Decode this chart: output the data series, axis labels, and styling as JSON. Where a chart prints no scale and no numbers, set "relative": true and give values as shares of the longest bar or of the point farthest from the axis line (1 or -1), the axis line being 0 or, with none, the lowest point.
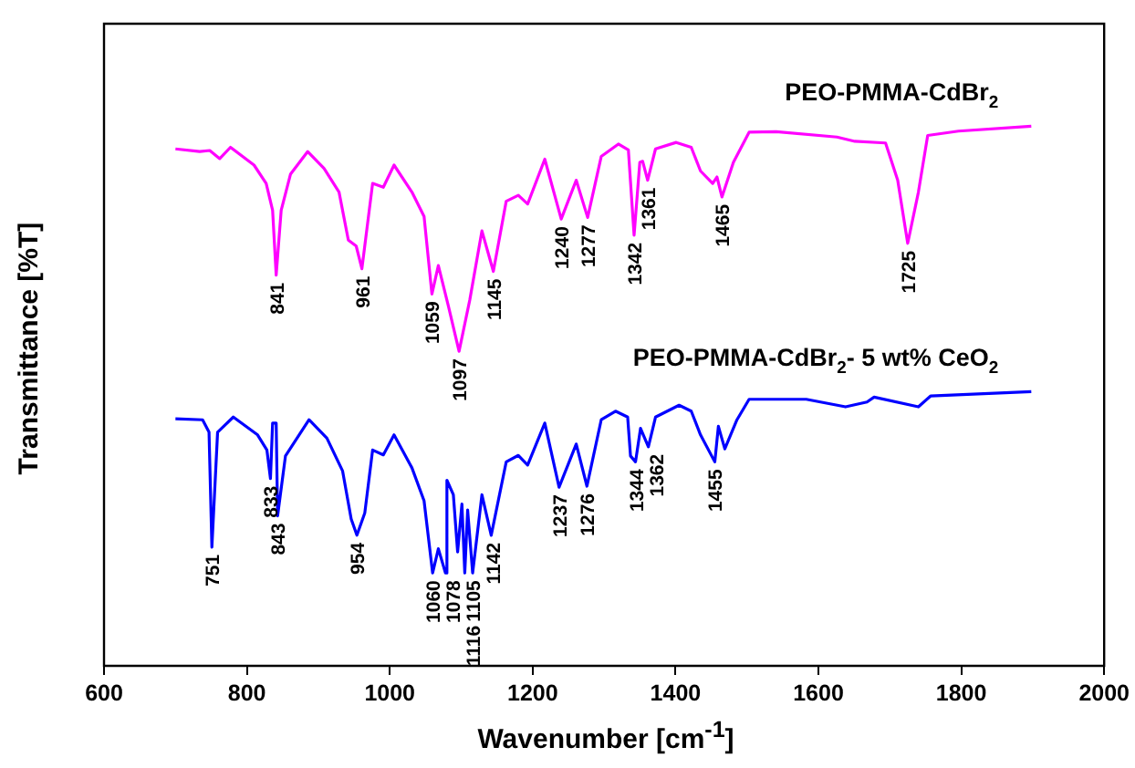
{
  "chart_data": {
    "type": "line",
    "relative": true,
    "marker": "none",
    "xlabel": "Wavenumber [cm$^{-1}$]",
    "ylabel": "Transmittance [%T]",
    "xlim": [
      600,
      2000
    ],
    "xticks": [
      600,
      800,
      1000,
      1200,
      1400,
      1600,
      1800,
      2000
    ],
    "series": [
      {
        "name": "PEO-PMMA-CdBr$_{2}$",
        "color": "#ff00ff",
        "x": [
          700,
          734,
          748,
          762,
          777,
          810,
          827,
          836,
          841,
          848,
          861,
          885,
          908,
          929,
          942,
          953,
          961,
          976,
          991,
          1006,
          1031,
          1048,
          1059,
          1068,
          1082,
          1097,
          1112,
          1129,
          1145,
          1163,
          1180,
          1193,
          1217,
          1240,
          1261,
          1277,
          1296,
          1320,
          1334,
          1342,
          1350,
          1354,
          1361,
          1372,
          1401,
          1422,
          1435,
          1452,
          1458,
          1465,
          1481,
          1503,
          1541,
          1626,
          1651,
          1694,
          1711,
          1725,
          1740,
          1753,
          1796,
          1898
        ],
        "values": [
          0.958,
          0.953,
          0.955,
          0.94,
          0.961,
          0.928,
          0.894,
          0.844,
          0.724,
          0.844,
          0.911,
          0.953,
          0.922,
          0.878,
          0.789,
          0.778,
          0.736,
          0.894,
          0.887,
          0.928,
          0.878,
          0.833,
          0.689,
          0.742,
          0.667,
          0.583,
          0.678,
          0.806,
          0.731,
          0.861,
          0.872,
          0.856,
          0.939,
          0.828,
          0.9,
          0.831,
          0.944,
          0.967,
          0.956,
          0.798,
          0.933,
          0.935,
          0.9,
          0.958,
          0.97,
          0.961,
          0.917,
          0.894,
          0.906,
          0.869,
          0.933,
          0.989,
          0.99,
          0.98,
          0.972,
          0.969,
          0.9,
          0.783,
          0.878,
          0.983,
          0.991,
          1
        ]
      },
      {
        "name": "PEO-PMMA-CdBr$_{2}$- 5 wt% CeO$_{2}$",
        "color": "#0000ff",
        "x": [
          700,
          738,
          747,
          751,
          759,
          781,
          815,
          828,
          833,
          836,
          841,
          843,
          854,
          887,
          912,
          934,
          946,
          954,
          965,
          976,
          991,
          1006,
          1031,
          1048,
          1060,
          1068,
          1078,
          1080,
          1089,
          1095,
          1101,
          1105,
          1109,
          1116,
          1129,
          1142,
          1163,
          1180,
          1193,
          1217,
          1237,
          1261,
          1276,
          1296,
          1316,
          1333,
          1337,
          1344,
          1351,
          1362,
          1372,
          1405,
          1422,
          1435,
          1455,
          1460,
          1469,
          1486,
          1503,
          1583,
          1638,
          1668,
          1678,
          1740,
          1757,
          1898
        ],
        "values": [
          0.458,
          0.456,
          0.433,
          0.22,
          0.433,
          0.461,
          0.428,
          0.4,
          0.347,
          0.45,
          0.45,
          0.278,
          0.389,
          0.456,
          0.422,
          0.361,
          0.272,
          0.242,
          0.283,
          0.4,
          0.391,
          0.428,
          0.367,
          0.306,
          0.172,
          0.217,
          0.172,
          0.344,
          0.317,
          0.211,
          0.3,
          0.172,
          0.289,
          0.172,
          0.317,
          0.242,
          0.378,
          0.39,
          0.372,
          0.45,
          0.331,
          0.411,
          0.333,
          0.456,
          0.472,
          0.461,
          0.389,
          0.378,
          0.44,
          0.406,
          0.461,
          0.483,
          0.472,
          0.428,
          0.378,
          0.444,
          0.402,
          0.456,
          0.494,
          0.494,
          0.48,
          0.489,
          0.498,
          0.48,
          0.5,
          0.508
        ]
      }
    ],
    "annotations": [
      {
        "text": "841",
        "x": 841,
        "y": 0.724
      },
      {
        "text": "961",
        "x": 961,
        "y": 0.736
      },
      {
        "text": "1059",
        "x": 1059,
        "y": 0.689
      },
      {
        "text": "1097",
        "x": 1097,
        "y": 0.583
      },
      {
        "text": "1145",
        "x": 1145,
        "y": 0.731
      },
      {
        "text": "1240",
        "x": 1240,
        "y": 0.828
      },
      {
        "text": "1277",
        "x": 1277,
        "y": 0.831
      },
      {
        "text": "1342",
        "x": 1342,
        "y": 0.798
      },
      {
        "text": "1361",
        "x": 1361,
        "y": 0.9
      },
      {
        "text": "1465",
        "x": 1465,
        "y": 0.869
      },
      {
        "text": "1725",
        "x": 1725,
        "y": 0.783
      },
      {
        "text": "751",
        "x": 751,
        "y": 0.22
      },
      {
        "text": "833",
        "x": 833,
        "y": 0.347
      },
      {
        "text": "843",
        "x": 843,
        "y": 0.278
      },
      {
        "text": "954",
        "x": 954,
        "y": 0.242
      },
      {
        "text": "1060",
        "x": 1060,
        "y": 0.172
      },
      {
        "text": "1078",
        "x": 1078,
        "y": 0.172
      },
      {
        "text": "1105",
        "x": 1105,
        "y": 0.172
      },
      {
        "text": "1116",
        "x": 1116,
        "y": 0.172
      },
      {
        "text": "1142",
        "x": 1142,
        "y": 0.242
      },
      {
        "text": "1237",
        "x": 1237,
        "y": 0.331
      },
      {
        "text": "1276",
        "x": 1276,
        "y": 0.333
      },
      {
        "text": "1344",
        "x": 1344,
        "y": 0.378
      },
      {
        "text": "1362",
        "x": 1362,
        "y": 0.406
      },
      {
        "text": "1455",
        "x": 1455,
        "y": 0.378
      }
    ]
  }
}
